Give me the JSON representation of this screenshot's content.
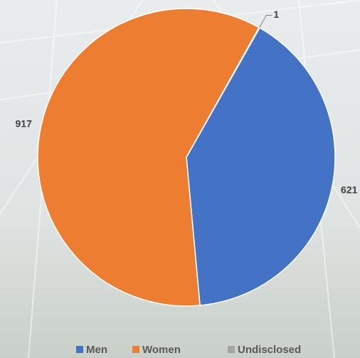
{
  "chart_data": {
    "type": "pie",
    "categories": [
      "Men",
      "Women",
      "Undisclosed"
    ],
    "values": [
      621,
      917,
      1
    ],
    "colors": [
      "#4472c4",
      "#ed7d31",
      "#a5a5a5"
    ],
    "legend": "bottom"
  }
}
